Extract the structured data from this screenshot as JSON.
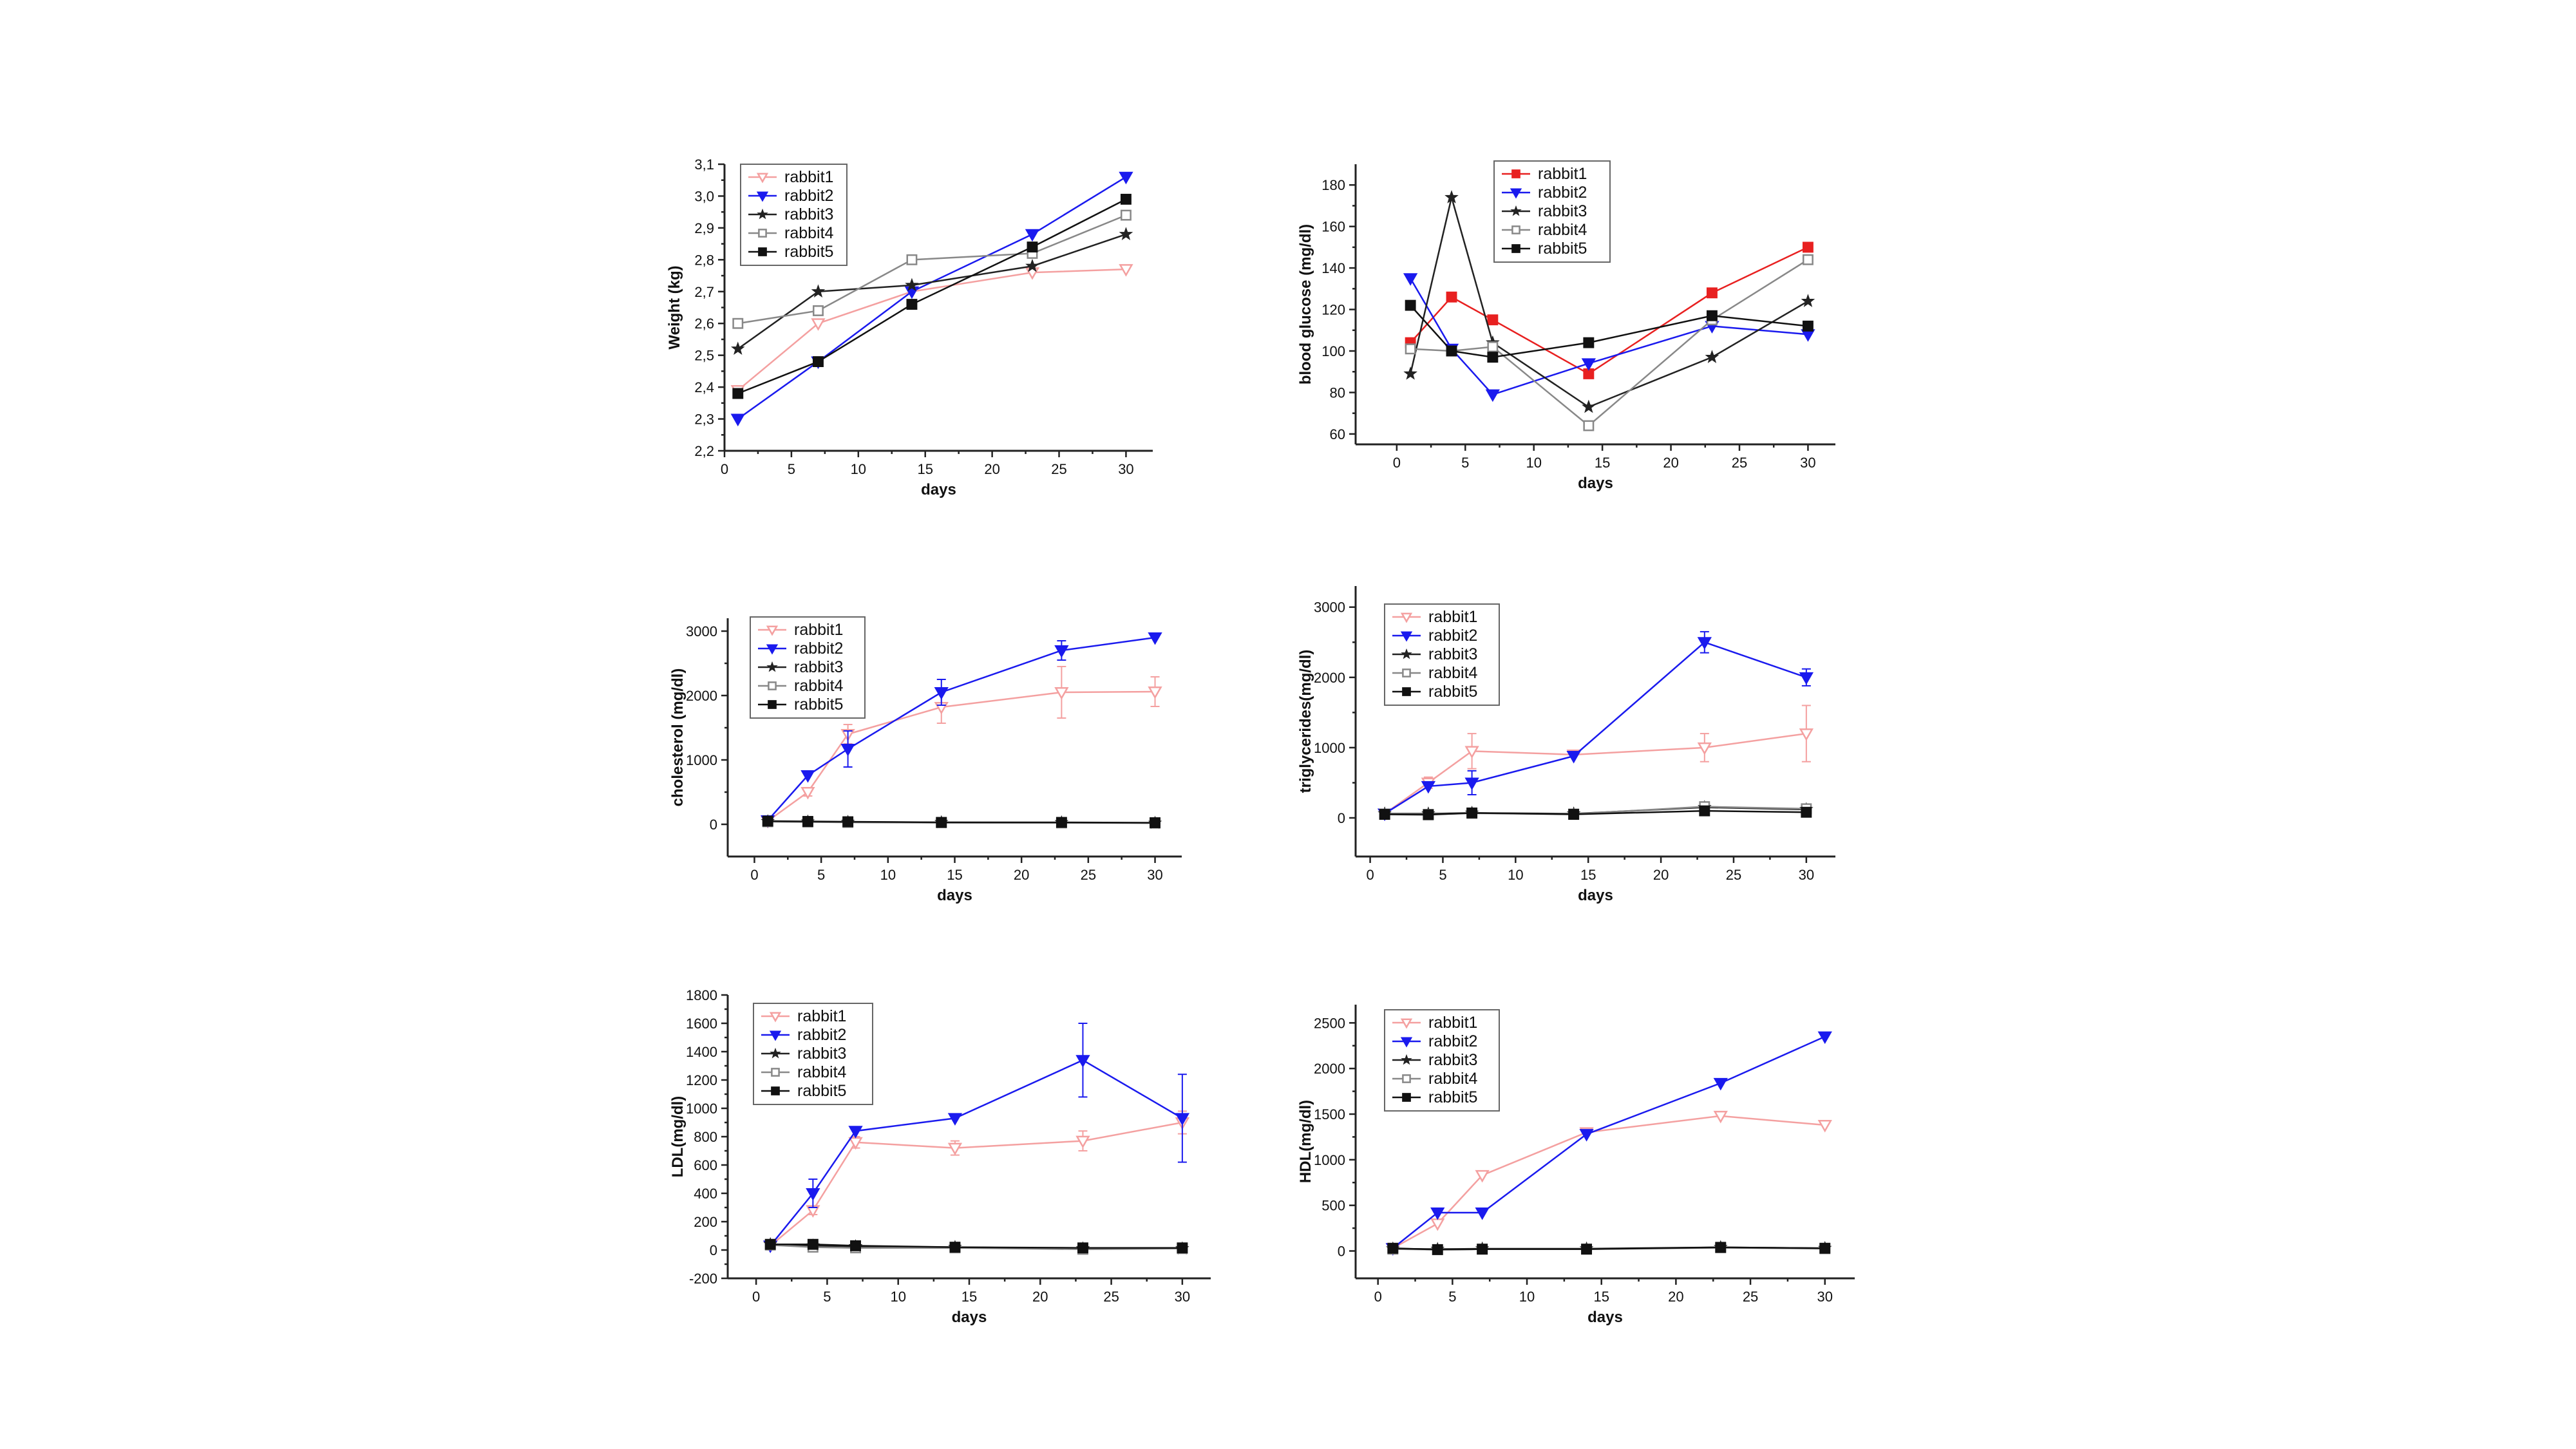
{
  "chart_data": [
    {
      "type": "line",
      "xlabel": "days",
      "ylabel": "Weight (kg)",
      "xlim": [
        0,
        32
      ],
      "ylim": [
        2.2,
        3.1
      ],
      "xticks": [
        0,
        5,
        10,
        15,
        20,
        25,
        30
      ],
      "yticks": [
        2.2,
        2.3,
        2.4,
        2.5,
        2.6,
        2.7,
        2.8,
        2.9,
        3.0,
        3.1
      ],
      "ytick_labels": [
        "2,2",
        "2,3",
        "2,4",
        "2,5",
        "2,6",
        "2,7",
        "2,8",
        "2,9",
        "3,0",
        "3,1"
      ],
      "legend_position": "top-left",
      "series": [
        {
          "name": "rabbit1",
          "color": "#f4a0a0",
          "marker": "triangle-down-open",
          "x": [
            1,
            7,
            14,
            23,
            30
          ],
          "y": [
            2.39,
            2.6,
            2.7,
            2.76,
            2.77
          ]
        },
        {
          "name": "rabbit2",
          "color": "#1a1aee",
          "marker": "triangle-down",
          "x": [
            1,
            7,
            14,
            23,
            30
          ],
          "y": [
            2.3,
            2.48,
            2.7,
            2.88,
            3.06
          ]
        },
        {
          "name": "rabbit3",
          "color": "#222222",
          "marker": "star",
          "x": [
            1,
            7,
            14,
            23,
            30
          ],
          "y": [
            2.52,
            2.7,
            2.72,
            2.78,
            2.88
          ]
        },
        {
          "name": "rabbit4",
          "color": "#888888",
          "marker": "square-open",
          "x": [
            1,
            7,
            14,
            23,
            30
          ],
          "y": [
            2.6,
            2.64,
            2.8,
            2.82,
            2.94
          ]
        },
        {
          "name": "rabbit5",
          "color": "#111111",
          "marker": "square",
          "x": [
            1,
            7,
            14,
            23,
            30
          ],
          "y": [
            2.38,
            2.48,
            2.66,
            2.84,
            2.99
          ]
        }
      ]
    },
    {
      "type": "line",
      "xlabel": "days",
      "ylabel": "blood glucose (mg/dl)",
      "xlim": [
        -3,
        32
      ],
      "ylim": [
        55,
        190
      ],
      "xticks": [
        0,
        5,
        10,
        15,
        20,
        25,
        30
      ],
      "yticks": [
        60,
        80,
        100,
        120,
        140,
        160,
        180
      ],
      "legend_position": "top-center",
      "series": [
        {
          "name": "rabbit1",
          "color": "#e82020",
          "marker": "square",
          "x": [
            1,
            4,
            7,
            14,
            23,
            30
          ],
          "y": [
            104,
            126,
            115,
            89,
            128,
            150
          ]
        },
        {
          "name": "rabbit2",
          "color": "#1a1aee",
          "marker": "triangle-down",
          "x": [
            1,
            4,
            7,
            14,
            23,
            30
          ],
          "y": [
            135,
            101,
            79,
            94,
            112,
            108
          ]
        },
        {
          "name": "rabbit3",
          "color": "#222222",
          "marker": "star",
          "x": [
            1,
            4,
            7,
            14,
            23,
            30
          ],
          "y": [
            89,
            174,
            104,
            73,
            97,
            124
          ]
        },
        {
          "name": "rabbit4",
          "color": "#888888",
          "marker": "square-open",
          "x": [
            1,
            4,
            7,
            14,
            23,
            30
          ],
          "y": [
            101,
            100,
            102,
            64,
            115,
            144
          ]
        },
        {
          "name": "rabbit5",
          "color": "#111111",
          "marker": "square",
          "x": [
            1,
            4,
            7,
            14,
            23,
            30
          ],
          "y": [
            122,
            100,
            97,
            104,
            117,
            112
          ]
        }
      ]
    },
    {
      "type": "line",
      "xlabel": "days",
      "ylabel": "cholesterol (mg/dl)",
      "xlim": [
        -2,
        32
      ],
      "ylim": [
        -500,
        3200
      ],
      "xticks": [
        0,
        5,
        10,
        15,
        20,
        25,
        30
      ],
      "yticks": [
        0,
        1000,
        2000,
        3000
      ],
      "legend_position": "top-left",
      "series": [
        {
          "name": "rabbit1",
          "color": "#f4a0a0",
          "marker": "triangle-down-open",
          "x": [
            1,
            4,
            7,
            14,
            23,
            30
          ],
          "y": [
            50,
            500,
            1400,
            1820,
            2050,
            2060
          ],
          "err": [
            0,
            60,
            150,
            250,
            400,
            230
          ]
        },
        {
          "name": "rabbit2",
          "color": "#1a1aee",
          "marker": "triangle-down",
          "x": [
            1,
            4,
            7,
            14,
            23,
            30
          ],
          "y": [
            60,
            760,
            1170,
            2050,
            2700,
            2900
          ],
          "err": [
            0,
            0,
            280,
            200,
            150,
            0
          ]
        },
        {
          "name": "rabbit3",
          "color": "#222222",
          "marker": "star",
          "x": [
            1,
            4,
            7,
            14,
            23,
            30
          ],
          "y": [
            45,
            40,
            35,
            30,
            28,
            20
          ]
        },
        {
          "name": "rabbit4",
          "color": "#888888",
          "marker": "square-open",
          "x": [
            1,
            4,
            7,
            14,
            23,
            30
          ],
          "y": [
            40,
            35,
            30,
            25,
            22,
            18
          ]
        },
        {
          "name": "rabbit5",
          "color": "#111111",
          "marker": "square",
          "x": [
            1,
            4,
            7,
            14,
            23,
            30
          ],
          "y": [
            50,
            45,
            40,
            30,
            30,
            25
          ]
        }
      ]
    },
    {
      "type": "line",
      "xlabel": "days",
      "ylabel": "triglycerides(mg/dl)",
      "xlim": [
        -1,
        32
      ],
      "ylim": [
        -550,
        3300
      ],
      "xticks": [
        0,
        5,
        10,
        15,
        20,
        25,
        30
      ],
      "yticks": [
        0,
        1000,
        2000,
        3000
      ],
      "legend_position": "top-left",
      "series": [
        {
          "name": "rabbit1",
          "color": "#f4a0a0",
          "marker": "triangle-down-open",
          "x": [
            1,
            4,
            7,
            14,
            23,
            30
          ],
          "y": [
            60,
            500,
            950,
            900,
            1000,
            1200
          ],
          "err": [
            0,
            80,
            250,
            0,
            200,
            400
          ]
        },
        {
          "name": "rabbit2",
          "color": "#1a1aee",
          "marker": "triangle-down",
          "x": [
            1,
            4,
            7,
            14,
            23,
            30
          ],
          "y": [
            60,
            450,
            500,
            880,
            2500,
            2000
          ],
          "err": [
            0,
            0,
            170,
            0,
            150,
            120
          ]
        },
        {
          "name": "rabbit3",
          "color": "#222222",
          "marker": "star",
          "x": [
            1,
            4,
            7,
            14,
            23,
            30
          ],
          "y": [
            60,
            60,
            70,
            60,
            150,
            120
          ]
        },
        {
          "name": "rabbit4",
          "color": "#888888",
          "marker": "square-open",
          "x": [
            1,
            4,
            7,
            14,
            23,
            30
          ],
          "y": [
            55,
            50,
            65,
            55,
            160,
            130
          ]
        },
        {
          "name": "rabbit5",
          "color": "#111111",
          "marker": "square",
          "x": [
            1,
            4,
            7,
            14,
            23,
            30
          ],
          "y": [
            50,
            45,
            70,
            50,
            100,
            80
          ]
        }
      ]
    },
    {
      "type": "line",
      "xlabel": "days",
      "ylabel": "LDL(mg/dl)",
      "xlim": [
        -2,
        32
      ],
      "ylim": [
        -200,
        1800
      ],
      "xticks": [
        0,
        5,
        10,
        15,
        20,
        25,
        30
      ],
      "yticks": [
        -200,
        0,
        200,
        400,
        600,
        800,
        1000,
        1200,
        1400,
        1600,
        1800
      ],
      "legend_position": "top-left",
      "series": [
        {
          "name": "rabbit1",
          "color": "#f4a0a0",
          "marker": "triangle-down-open",
          "x": [
            1,
            4,
            7,
            14,
            23,
            30
          ],
          "y": [
            30,
            280,
            760,
            720,
            770,
            900
          ],
          "err": [
            0,
            30,
            40,
            50,
            70,
            80
          ]
        },
        {
          "name": "rabbit2",
          "color": "#1a1aee",
          "marker": "triangle-down",
          "x": [
            1,
            4,
            7,
            14,
            23,
            30
          ],
          "y": [
            30,
            400,
            840,
            930,
            1340,
            930
          ],
          "err": [
            0,
            100,
            0,
            0,
            260,
            310
          ]
        },
        {
          "name": "rabbit3",
          "color": "#222222",
          "marker": "star",
          "x": [
            1,
            4,
            7,
            14,
            23,
            30
          ],
          "y": [
            40,
            30,
            25,
            20,
            10,
            10
          ]
        },
        {
          "name": "rabbit4",
          "color": "#888888",
          "marker": "square-open",
          "x": [
            1,
            4,
            7,
            14,
            23,
            30
          ],
          "y": [
            35,
            20,
            15,
            15,
            5,
            10
          ]
        },
        {
          "name": "rabbit5",
          "color": "#111111",
          "marker": "square",
          "x": [
            1,
            4,
            7,
            14,
            23,
            30
          ],
          "y": [
            40,
            40,
            30,
            20,
            15,
            15
          ]
        }
      ]
    },
    {
      "type": "line",
      "xlabel": "days",
      "ylabel": "HDL(mg/dl)",
      "xlim": [
        -1.5,
        32
      ],
      "ylim": [
        -300,
        2700
      ],
      "xticks": [
        0,
        5,
        10,
        15,
        20,
        25,
        30
      ],
      "yticks": [
        0,
        500,
        1000,
        1500,
        2000,
        2500
      ],
      "legend_position": "top-left",
      "series": [
        {
          "name": "rabbit1",
          "color": "#f4a0a0",
          "marker": "triangle-down-open",
          "x": [
            1,
            4,
            7,
            14,
            23,
            30
          ],
          "y": [
            30,
            300,
            830,
            1300,
            1480,
            1380
          ]
        },
        {
          "name": "rabbit2",
          "color": "#1a1aee",
          "marker": "triangle-down",
          "x": [
            1,
            4,
            7,
            14,
            23,
            30
          ],
          "y": [
            30,
            420,
            420,
            1280,
            1840,
            2350
          ]
        },
        {
          "name": "rabbit3",
          "color": "#222222",
          "marker": "star",
          "x": [
            1,
            4,
            7,
            14,
            23,
            30
          ],
          "y": [
            25,
            20,
            25,
            25,
            40,
            30
          ]
        },
        {
          "name": "rabbit4",
          "color": "#888888",
          "marker": "square-open",
          "x": [
            1,
            4,
            7,
            14,
            23,
            30
          ],
          "y": [
            20,
            15,
            20,
            20,
            35,
            25
          ]
        },
        {
          "name": "rabbit5",
          "color": "#111111",
          "marker": "square",
          "x": [
            1,
            4,
            7,
            14,
            23,
            30
          ],
          "y": [
            30,
            15,
            20,
            20,
            40,
            30
          ]
        }
      ]
    }
  ]
}
